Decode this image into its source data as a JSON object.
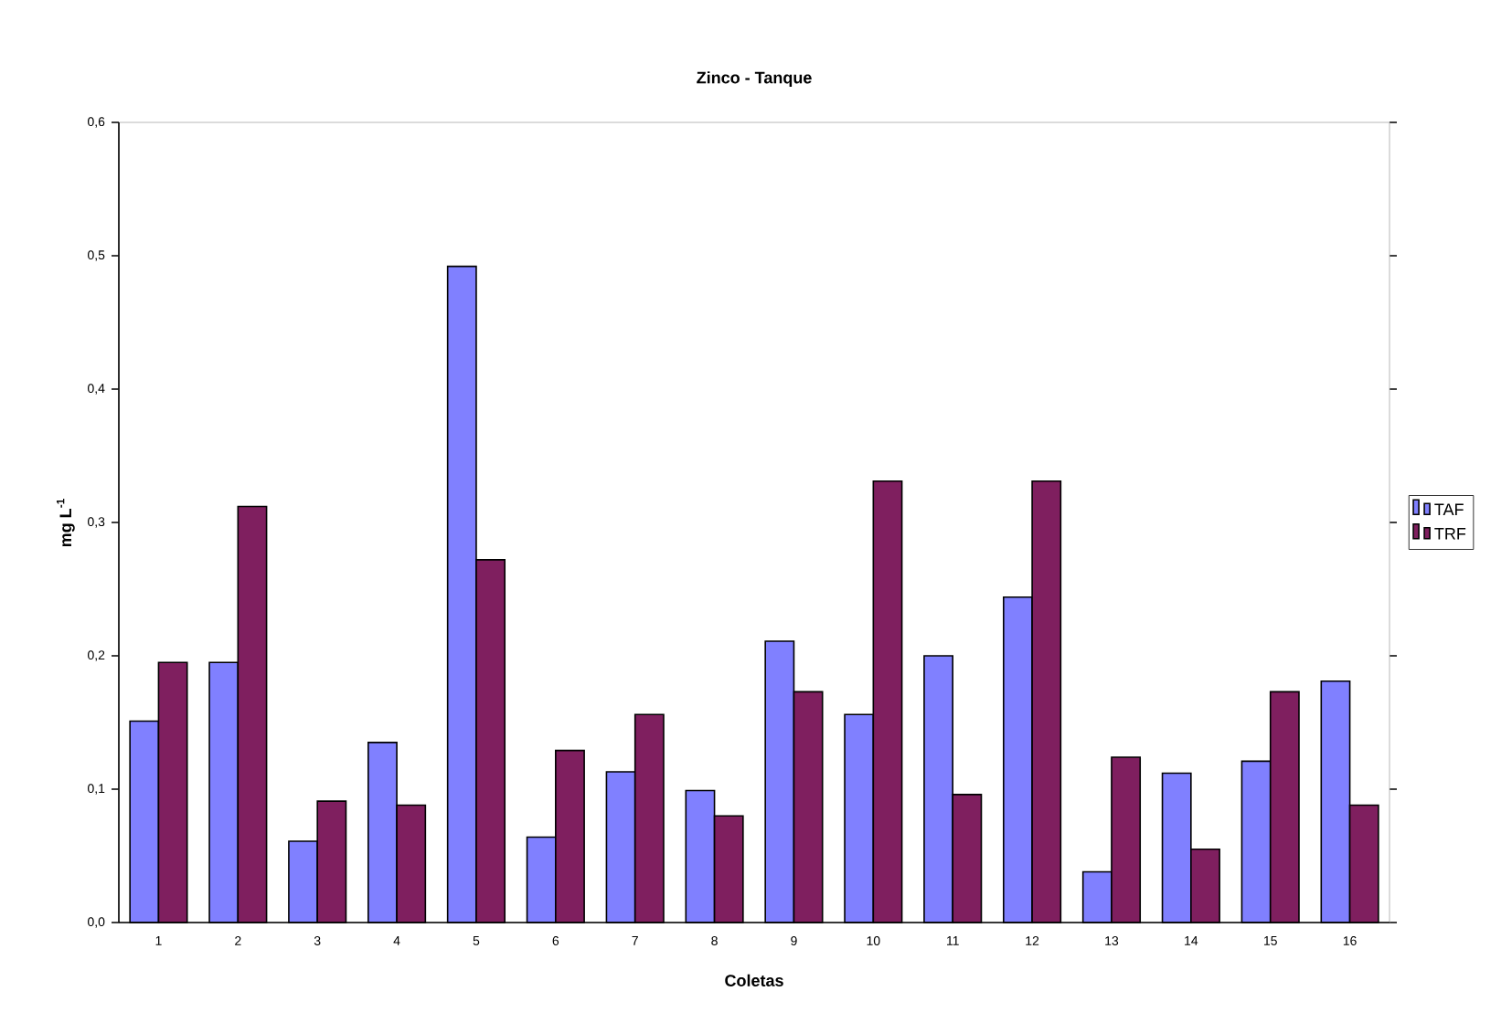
{
  "chart_data": {
    "type": "bar",
    "title": "Zinco - Tanque",
    "xlabel": "Coletas",
    "ylabel": "mg L$^{-1}$",
    "categories": [
      "1",
      "2",
      "3",
      "4",
      "5",
      "6",
      "7",
      "8",
      "9",
      "10",
      "11",
      "12",
      "13",
      "14",
      "15",
      "16"
    ],
    "series": [
      {
        "name": "TAF",
        "color": "#8080ff",
        "values": [
          0.151,
          0.195,
          0.061,
          0.135,
          0.492,
          0.064,
          0.113,
          0.099,
          0.211,
          0.156,
          0.2,
          0.244,
          0.038,
          0.112,
          0.121,
          0.181
        ]
      },
      {
        "name": "TRF",
        "color": "#7f1f5f",
        "values": [
          0.195,
          0.312,
          0.091,
          0.088,
          0.272,
          0.129,
          0.156,
          0.08,
          0.173,
          0.331,
          0.096,
          0.331,
          0.124,
          0.055,
          0.173,
          0.088
        ]
      }
    ],
    "ylim": [
      0,
      0.6
    ],
    "yticks": [
      {
        "value": 0,
        "label": "0,0"
      },
      {
        "value": 0.1,
        "label": "0,1"
      },
      {
        "value": 0.2,
        "label": "0,2"
      },
      {
        "value": 0.3,
        "label": "0,3"
      },
      {
        "value": 0.4,
        "label": "0,4"
      },
      {
        "value": 0.5,
        "label": "0,5"
      },
      {
        "value": 0.6,
        "label": "0,6"
      }
    ],
    "grid": false,
    "legend": "right"
  }
}
